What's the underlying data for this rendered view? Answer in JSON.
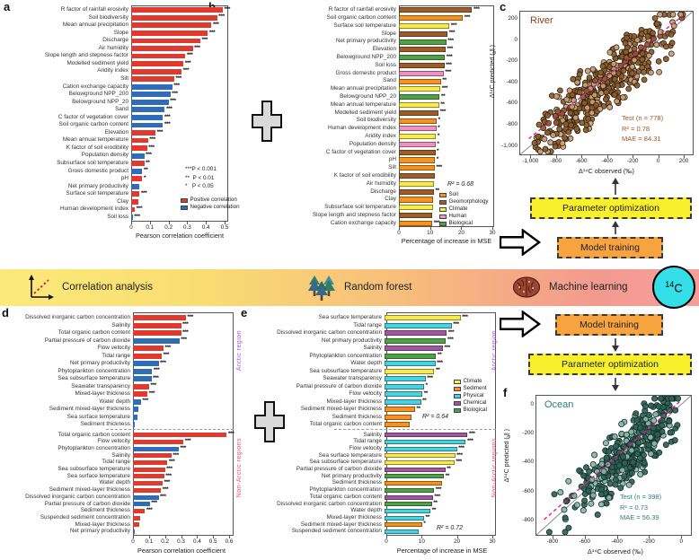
{
  "panel_labels": {
    "a": "a",
    "b": "b",
    "c": "c",
    "d": "d",
    "e": "e",
    "f": "f"
  },
  "colors": {
    "pos": "#e0392e",
    "neg": "#2f6db8",
    "soil": "#f6921e",
    "geomorphology": "#9e5c2a",
    "climate": "#f6ec4a",
    "human": "#f090c5",
    "biological": "#4aa34a",
    "sediment": "#f6921e",
    "physical": "#3fd6e8",
    "chemical": "#9f58a8",
    "regression": "#e0218a",
    "river_point": "#8a5a2b",
    "river_point_light": "#c7a078",
    "river_edge": "#33210e",
    "river_text": "#a0561c",
    "river_title": "#8a4518",
    "ocean_point": "#2f6156",
    "ocean_point_light": "#8ab5a8",
    "ocean_edge": "#122f28",
    "ocean_text": "#2e8070",
    "ocean_title": "#2e8070",
    "arctic": "#b44fd8",
    "non_arctic": "#ef4e7e",
    "box_yellow": "#f8f02c",
    "box_orange": "#f6a340"
  },
  "row_format": [
    "label",
    "value",
    "group_or_direction",
    "significance"
  ],
  "chart_data": [
    {
      "id": "a",
      "type": "bar",
      "xlabel": "Pearson correlation coefficient",
      "xmax": 0.5,
      "xticks": [
        "0",
        "0.1",
        "0.2",
        "0.3",
        "0.4",
        "0.5"
      ],
      "sig_legend": [
        "***P < 0.001",
        "**  P < 0.01",
        "*   P < 0.05"
      ],
      "legend": [
        {
          "label": "Positive correlation",
          "key": "pos"
        },
        {
          "label": "Negative correlation",
          "key": "neg"
        }
      ],
      "rows": [
        [
          "R factor of rainfall erosivity",
          0.49,
          "pos",
          "***"
        ],
        [
          "Soil biodiversity",
          0.46,
          "pos",
          "***"
        ],
        [
          "Mean annual precipitation",
          0.43,
          "pos",
          "***"
        ],
        [
          "Slope",
          0.41,
          "pos",
          "***"
        ],
        [
          "Discharge",
          0.37,
          "pos",
          "***"
        ],
        [
          "Air humidity",
          0.33,
          "pos",
          "***"
        ],
        [
          "Slope length and stepness factor",
          0.29,
          "pos",
          "***"
        ],
        [
          "Modelled sediment yield",
          0.28,
          "pos",
          "***"
        ],
        [
          "Aridity index",
          0.27,
          "pos",
          "***"
        ],
        [
          "Silt",
          0.23,
          "pos",
          "***"
        ],
        [
          "Cation exchange capacity",
          0.22,
          "neg",
          "***"
        ],
        [
          "Belowground NPP_200",
          0.21,
          "neg",
          "***"
        ],
        [
          "Belowground NPP_20",
          0.2,
          "neg",
          "***"
        ],
        [
          "Sand",
          0.18,
          "neg",
          "***"
        ],
        [
          "C factor of vegetation cover",
          0.17,
          "neg",
          "***"
        ],
        [
          "Soil organic carbon content",
          0.17,
          "neg",
          "***"
        ],
        [
          "Elevation",
          0.13,
          "pos",
          "***"
        ],
        [
          "Mean annual temperature",
          0.09,
          "pos",
          "***"
        ],
        [
          "K factor of soil erodibility",
          0.085,
          "pos",
          "***"
        ],
        [
          "Population density",
          0.07,
          "neg",
          "***"
        ],
        [
          "Subsurface soil temperature",
          0.07,
          "pos",
          "**"
        ],
        [
          "Gross domestic product",
          0.06,
          "neg",
          "**"
        ],
        [
          "pH",
          0.06,
          "pos",
          "*"
        ],
        [
          "Net primary productivity",
          0.045,
          "neg",
          ""
        ],
        [
          "Surface soil temperature",
          0.045,
          "pos",
          "***"
        ],
        [
          "Clay",
          0.04,
          "pos",
          ""
        ],
        [
          "Human development index",
          0.02,
          "pos",
          "***"
        ],
        [
          "Soil loss",
          0.008,
          "neg",
          "***"
        ]
      ]
    },
    {
      "id": "b",
      "type": "bar",
      "xlabel": "Percentage of increase in MSE",
      "xmax": 30,
      "xticks": [
        "0",
        "10",
        "20",
        "30"
      ],
      "r2": "R² = 0.68",
      "legend": [
        {
          "label": "Soil",
          "key": "soil"
        },
        {
          "label": "Geomorphology",
          "key": "geomorphology"
        },
        {
          "label": "Climate",
          "key": "climate"
        },
        {
          "label": "Human",
          "key": "human"
        },
        {
          "label": "Biological",
          "key": "biological"
        }
      ],
      "rows": [
        [
          "R factor of rainfall erosivity",
          23.5,
          "geomorphology",
          "***"
        ],
        [
          "Soil organic carbon content",
          20.5,
          "soil",
          "***"
        ],
        [
          "Surface soil temperature",
          16.2,
          "climate",
          "***"
        ],
        [
          "Slope",
          15.6,
          "geomorphology",
          "***"
        ],
        [
          "Net primary productivity",
          15.2,
          "biological",
          "***"
        ],
        [
          "Elevation",
          15.0,
          "geomorphology",
          "***"
        ],
        [
          "Belowground NPP_200",
          14.8,
          "biological",
          "***"
        ],
        [
          "Soil loss",
          14.6,
          "geomorphology",
          "***"
        ],
        [
          "Gross domestic product",
          14.4,
          "human",
          "***"
        ],
        [
          "Sand",
          13.5,
          "soil",
          "**"
        ],
        [
          "Mean annual precipitation",
          13.3,
          "climate",
          "***"
        ],
        [
          "Belowground NPP_20",
          13.1,
          "biological",
          "**"
        ],
        [
          "Mean annual temperature",
          12.9,
          "climate",
          "**"
        ],
        [
          "Modelled sediment yield",
          12.7,
          "geomorphology",
          "***"
        ],
        [
          "Soil biodiversity",
          12.1,
          "soil",
          "*"
        ],
        [
          "Human development index",
          12.0,
          "human",
          "*"
        ],
        [
          "Aridity index",
          11.9,
          "climate",
          "*"
        ],
        [
          "Population density",
          11.8,
          "human",
          "*"
        ],
        [
          "C factor of vegetation cover",
          11.7,
          "geomorphology",
          "*"
        ],
        [
          "pH",
          11.6,
          "soil",
          "*"
        ],
        [
          "Silt",
          11.5,
          "soil",
          "***"
        ],
        [
          "K factor of soil erodibility",
          11.4,
          "geomorphology",
          ""
        ],
        [
          "Air humidity",
          11.3,
          "climate",
          ""
        ],
        [
          "Discharge",
          11.2,
          "geomorphology",
          "**"
        ],
        [
          "Clay",
          11.0,
          "soil",
          ""
        ],
        [
          "Subsurface soil temperature",
          10.9,
          "climate",
          ""
        ],
        [
          "Slope length and stepness factor",
          10.8,
          "geomorphology",
          ""
        ],
        [
          "Cation exchange capacity",
          10.7,
          "soil",
          "***"
        ]
      ]
    },
    {
      "id": "c",
      "type": "scatter",
      "title": "River",
      "xlabel": "Δ¹⁴C observed (‰)",
      "ylabel": "Δ¹⁴C predicted (‰)",
      "xlim": [
        -1080,
        270
      ],
      "ylim": [
        -1080,
        270
      ],
      "xticks": [
        "-1,000",
        "-800",
        "-600",
        "-400",
        "-200",
        "0",
        "200"
      ],
      "yticks": [
        "200",
        "0",
        "-200",
        "-400",
        "-600",
        "-800",
        "-1,000"
      ],
      "stats": {
        "test": "Test (n = 778)",
        "r2": "R² = 0.78",
        "mae": "MAE = 84.31"
      },
      "n_points": 778
    },
    {
      "id": "d",
      "type": "bar",
      "xlabel": "Pearson correlation coefficient",
      "xmax": 0.6,
      "xticks": [
        "0",
        "0.1",
        "0.2",
        "0.3",
        "0.4",
        "0.5",
        "0.6"
      ],
      "groups": [
        {
          "name": "Arctic region",
          "rows": [
            [
              "Dissolved inorganic carbon concentration",
              0.33,
              "pos",
              "***"
            ],
            [
              "Salinity",
              0.3,
              "pos",
              "***"
            ],
            [
              "Total organic carbon content",
              0.3,
              "pos",
              "***"
            ],
            [
              "Partial pressure of carbon dioxide",
              0.29,
              "neg",
              "***"
            ],
            [
              "Flow velocity",
              0.19,
              "pos",
              "***"
            ],
            [
              "Tidal range",
              0.18,
              "pos",
              "***"
            ],
            [
              "Net primary productivity",
              0.16,
              "neg",
              "***"
            ],
            [
              "Phytoplankton concentration",
              0.12,
              "neg",
              "***"
            ],
            [
              "Sea subsurface temperature",
              0.115,
              "neg",
              "***"
            ],
            [
              "Seawater transparency",
              0.1,
              "pos",
              "***"
            ],
            [
              "Mixed-layer thickness",
              0.09,
              "pos",
              "***"
            ],
            [
              "Water depth",
              0.05,
              "neg",
              "***"
            ],
            [
              "Sediment mixed-layer thickness",
              0.035,
              "neg",
              ""
            ],
            [
              "Sea surface temperature",
              0.03,
              "neg",
              ""
            ],
            [
              "Sediment thickness",
              0.012,
              "neg",
              ""
            ]
          ]
        },
        {
          "name": "Non-Arctic regions",
          "rows": [
            [
              "Total organic carbon content",
              0.585,
              "pos",
              "***"
            ],
            [
              "Flow velocity",
              0.315,
              "pos",
              "***"
            ],
            [
              "Phytoplankton concentration",
              0.285,
              "neg",
              "***"
            ],
            [
              "Salinity",
              0.24,
              "pos",
              "***"
            ],
            [
              "Tidal range",
              0.215,
              "pos",
              "***"
            ],
            [
              "Sea subsurface temperature",
              0.2,
              "pos",
              "***"
            ],
            [
              "Sea surface temperature",
              0.195,
              "pos",
              "***"
            ],
            [
              "Water depth",
              0.185,
              "pos",
              "***"
            ],
            [
              "Sediment mixed-layer thickness",
              0.175,
              "pos",
              "***"
            ],
            [
              "Dissolved inorganic carbon concentration",
              0.16,
              "neg",
              "***"
            ],
            [
              "Partial pressure of carbon dioxide",
              0.105,
              "neg",
              "***"
            ],
            [
              "Sediment thickness",
              0.075,
              "pos",
              "***"
            ],
            [
              "Suspended sediment concentration",
              0.045,
              "pos",
              ""
            ],
            [
              "Mixed-layer thickness",
              0.04,
              "pos",
              ""
            ],
            [
              "Net primary productivity",
              0.012,
              "neg",
              ""
            ]
          ]
        }
      ]
    },
    {
      "id": "e",
      "type": "bar",
      "xlabel": "Percentage of increase in MSE",
      "xmax": 30,
      "xticks": [
        "0",
        "10",
        "20",
        "30"
      ],
      "legend": [
        {
          "label": "Climate",
          "key": "climate"
        },
        {
          "label": "Sediment",
          "key": "sediment"
        },
        {
          "label": "Physical",
          "key": "physical"
        },
        {
          "label": "Chemical",
          "key": "chemical"
        },
        {
          "label": "Biological",
          "key": "biological"
        }
      ],
      "groups": [
        {
          "name": "Arctic region",
          "r2": "R² = 0.64",
          "rows": [
            [
              "Sea surface temperature",
              21.5,
              "climate",
              "***"
            ],
            [
              "Tidal range",
              19.0,
              "physical",
              "***"
            ],
            [
              "Dissolved inorganic carbon concentration",
              17.6,
              "chemical",
              "***"
            ],
            [
              "Net primary productivity",
              17.4,
              "biological",
              "***"
            ],
            [
              "Salinity",
              16.5,
              "chemical",
              "***"
            ],
            [
              "Phytoplankton concentration",
              14.6,
              "biological",
              "**"
            ],
            [
              "Water depth",
              14.4,
              "physical",
              "***"
            ],
            [
              "Sea subsurface temperature",
              14.1,
              "climate",
              "**"
            ],
            [
              "Seawater transparency",
              11.6,
              "physical",
              "***"
            ],
            [
              "Partial pressure of carbon dioxide",
              11.2,
              "physical",
              "*"
            ],
            [
              "Flow velocity",
              10.7,
              "physical",
              "**"
            ],
            [
              "Mixed-layer thickness",
              10.3,
              "physical",
              "**"
            ],
            [
              "Sediment mixed-layer thickness",
              8.6,
              "sediment",
              "**"
            ],
            [
              "Sediment thickness",
              7.6,
              "sediment",
              ""
            ],
            [
              "Total organic carbon content",
              7.0,
              "sediment",
              ""
            ]
          ]
        },
        {
          "name": "Non-Arctic regions",
          "r2": "R² = 0.72",
          "rows": [
            [
              "Salinity",
              23.5,
              "chemical",
              "***"
            ],
            [
              "Tidal range",
              23.0,
              "physical",
              "***"
            ],
            [
              "Flow velocity",
              20.5,
              "physical",
              "***"
            ],
            [
              "Sea surface temperature",
              20.0,
              "climate",
              "***"
            ],
            [
              "Sea subsurface temperature",
              19.8,
              "climate",
              "***"
            ],
            [
              "Partial pressure of carbon dioxide",
              17.2,
              "chemical",
              "**"
            ],
            [
              "Net primary productivity",
              16.8,
              "biological",
              "**"
            ],
            [
              "Sediment thickness",
              16.2,
              "sediment",
              ""
            ],
            [
              "Phytoplankton concentration",
              14.0,
              "biological",
              "***"
            ],
            [
              "Total organic carbon content",
              13.7,
              "chemical",
              "***"
            ],
            [
              "Dissolved inorganic carbon concentration",
              13.4,
              "biological",
              "**"
            ],
            [
              "Water depth",
              13.0,
              "physical",
              "**"
            ],
            [
              "Mixed-layer thickness",
              11.2,
              "physical",
              "**"
            ],
            [
              "Sediment mixed-layer thickness",
              10.6,
              "sediment",
              "*"
            ],
            [
              "Suspended sediment concentration",
              9.6,
              "physical",
              ""
            ]
          ]
        }
      ]
    },
    {
      "id": "f",
      "type": "scatter",
      "title": "Ocean",
      "xlabel": "Δ¹⁴C observed (‰)",
      "ylabel": "Δ¹⁴C predicted (‰)",
      "xlim": [
        -900,
        60
      ],
      "ylim": [
        -900,
        60
      ],
      "xticks": [
        "-800",
        "-600",
        "-400",
        "-200",
        "0"
      ],
      "yticks": [
        "0",
        "-200",
        "-400",
        "-600",
        "-800"
      ],
      "stats": {
        "test": "Test (n = 398)",
        "r2": "R² = 0.73",
        "mae": "MAE = 56.39"
      },
      "n_points": 398
    }
  ],
  "band": {
    "items": [
      {
        "icon": "correlation-axes-icon",
        "label": "Correlation analysis"
      },
      {
        "icon": "pine-trees-icon",
        "label": "Random forest"
      },
      {
        "icon": "brain-icon",
        "label": "Machine learning"
      }
    ],
    "badge_sup": "14",
    "badge_base": "C"
  },
  "flow_c": {
    "top_box": "Parameter optimization",
    "bottom_box": "Model training"
  },
  "flow_f": {
    "top_box": "Model training",
    "bottom_box": "Parameter optimization"
  }
}
